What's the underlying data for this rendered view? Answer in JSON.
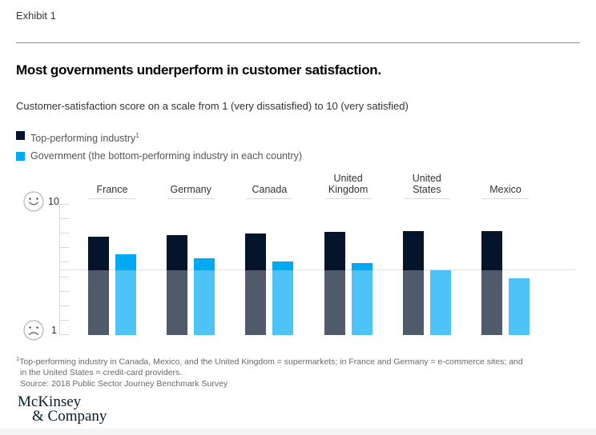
{
  "page": {
    "exhibit_label": "Exhibit 1",
    "title": "Most governments underperform in customer satisfaction.",
    "subtitle": "Customer-satisfaction score on a scale from 1 (very dissatisfied) to 10 (very satisfied)"
  },
  "legend": {
    "items": [
      {
        "label": "Top-performing industry",
        "superscript": "1",
        "color": "#04142B"
      },
      {
        "label": "Government (the bottom-performing industry in each country)",
        "superscript": "",
        "color": "#00A9F4"
      }
    ]
  },
  "chart_data": {
    "type": "bar",
    "categories": [
      "France",
      "Germany",
      "Canada",
      "United\nKingdom",
      "United\nStates",
      "Mexico"
    ],
    "series": [
      {
        "name": "Top-performing industry",
        "color": "#04142B",
        "values": [
          7.8,
          7.9,
          8.0,
          8.1,
          8.2,
          8.2
        ]
      },
      {
        "name": "Government (the bottom-performing industry in each country)",
        "color": "#00A9F4",
        "values": [
          6.6,
          6.3,
          6.1,
          6.0,
          5.5,
          4.9
        ]
      }
    ],
    "ylim": [
      1,
      10
    ],
    "midline": 5.5,
    "axis": {
      "top_label": "10",
      "bottom_label": "1"
    },
    "grid": "single horizontal midline, below-midline bar portions muted by white overlay",
    "legend_position": "top-left"
  },
  "footnote": {
    "superscript": "1",
    "line1": "Top-performing industry in Canada, Mexico, and the United Kingdom = supermarkets; in France and Germany = e-commerce sites; and",
    "line2": "in the United States = credit-card providers.",
    "source": "Source: 2018 Public Sector Journey Benchmark Survey"
  },
  "logo": {
    "line1": "McKinsey",
    "line2": "& Company"
  }
}
